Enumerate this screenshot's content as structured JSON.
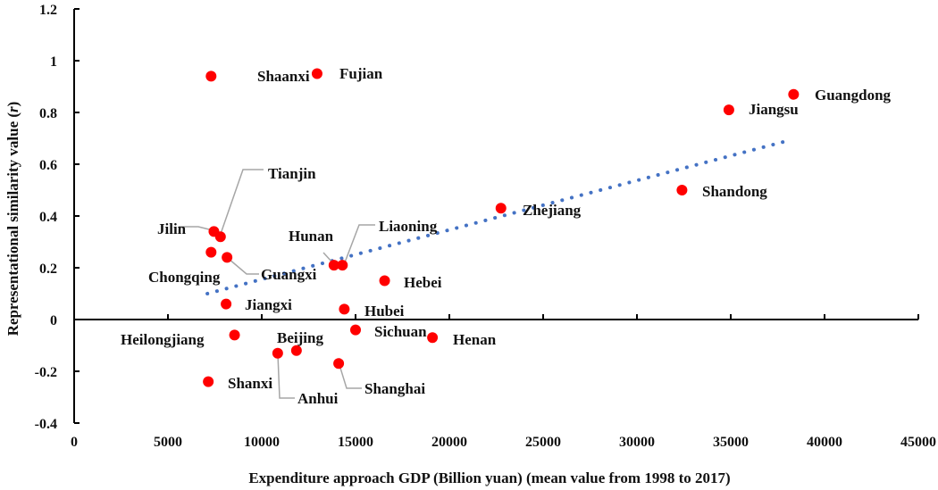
{
  "chart_data": {
    "type": "scatter",
    "title": "",
    "xlabel": "Expenditure approach GDP (Billion yuan) (mean value from 1998 to 2017)",
    "ylabel": "Representational similarity value (r)",
    "xlim": [
      0,
      45000
    ],
    "ylim": [
      -0.4,
      1.2
    ],
    "xticks": [
      "0",
      "5000",
      "10000",
      "15000",
      "20000",
      "25000",
      "30000",
      "35000",
      "40000",
      "45000"
    ],
    "yticks": [
      "-0.4",
      "-0.2",
      "0",
      "0.2",
      "0.4",
      "0.6",
      "0.8",
      "1",
      "1.2"
    ],
    "grid": false,
    "point_color": "#ff0000",
    "trend_color": "#4472c4",
    "points": [
      {
        "name": "Shaanxi",
        "x": 7300,
        "y": 0.94
      },
      {
        "name": "Fujian",
        "x": 12950,
        "y": 0.95
      },
      {
        "name": "Guangdong",
        "x": 38350,
        "y": 0.87
      },
      {
        "name": "Jiangsu",
        "x": 34900,
        "y": 0.81
      },
      {
        "name": "Shandong",
        "x": 32400,
        "y": 0.5
      },
      {
        "name": "Zhejiang",
        "x": 22750,
        "y": 0.43
      },
      {
        "name": "Tianjin",
        "x": 7800,
        "y": 0.32
      },
      {
        "name": "Jilin",
        "x": 7450,
        "y": 0.34
      },
      {
        "name": "Chongqing",
        "x": 7300,
        "y": 0.26
      },
      {
        "name": "Guangxi",
        "x": 8150,
        "y": 0.24
      },
      {
        "name": "Hunan",
        "x": 13850,
        "y": 0.21
      },
      {
        "name": "Liaoning",
        "x": 14300,
        "y": 0.21
      },
      {
        "name": "Hebei",
        "x": 16550,
        "y": 0.15
      },
      {
        "name": "Jiangxi",
        "x": 8100,
        "y": 0.06
      },
      {
        "name": "Hubei",
        "x": 14400,
        "y": 0.04
      },
      {
        "name": "Sichuan",
        "x": 15000,
        "y": -0.04
      },
      {
        "name": "Henan",
        "x": 19100,
        "y": -0.07
      },
      {
        "name": "Heilongjiang",
        "x": 8550,
        "y": -0.06
      },
      {
        "name": "Beijing",
        "x": 11850,
        "y": -0.12
      },
      {
        "name": "Anhui",
        "x": 10850,
        "y": -0.13
      },
      {
        "name": "Shanghai",
        "x": 14100,
        "y": -0.17
      },
      {
        "name": "Shanxi",
        "x": 7150,
        "y": -0.24
      }
    ],
    "trendline": {
      "type": "linear",
      "from": {
        "x": 7100,
        "y": 0.1
      },
      "to": {
        "x": 38000,
        "y": 0.69
      }
    }
  }
}
